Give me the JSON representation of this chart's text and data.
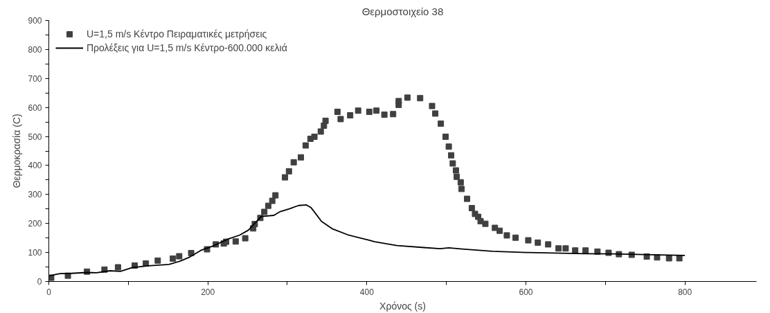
{
  "chart_data": {
    "type": "scatter",
    "title": "Θερμοστοιχείο 38",
    "xlabel": "Χρόνος (s)",
    "ylabel": "Θερμοκρασία (C)",
    "xlim": [
      0,
      890
    ],
    "ylim": [
      0,
      900
    ],
    "xticks": [
      0,
      {
        "value": 100,
        "label": null
      },
      200,
      {
        "value": 300,
        "label": null
      },
      400,
      {
        "value": 500,
        "label": null
      },
      600,
      {
        "value": 700,
        "label": null
      },
      800
    ],
    "yticks": [
      0,
      {
        "value": 50,
        "label": null
      },
      100,
      {
        "value": 150,
        "label": null
      },
      200,
      {
        "value": 250,
        "label": null
      },
      300,
      {
        "value": 350,
        "label": null
      },
      400,
      {
        "value": 450,
        "label": null
      },
      500,
      {
        "value": 550,
        "label": null
      },
      600,
      {
        "value": 650,
        "label": null
      },
      700,
      {
        "value": 750,
        "label": null
      },
      800,
      {
        "value": 850,
        "label": null
      },
      900
    ],
    "grid": false,
    "legend": "top left",
    "series": [
      {
        "name": "U=1,5 m/s Κέντρο Πειραματικές μετρήσεις",
        "marker": "square",
        "color": "#404040",
        "x": [
          3,
          24,
          48,
          70,
          87,
          108,
          122,
          137,
          156,
          164,
          179,
          199,
          210,
          220,
          223,
          235,
          247,
          257,
          259,
          266,
          271,
          276,
          281,
          285,
          297,
          302,
          308,
          317,
          323,
          329,
          334,
          342,
          346,
          348,
          363,
          367,
          379,
          389,
          403,
          412,
          422,
          433,
          440,
          440,
          451,
          467,
          482,
          486,
          493,
          499,
          503,
          506,
          508,
          512,
          513,
          518,
          519,
          526,
          532,
          536,
          540,
          543,
          549,
          561,
          567,
          576,
          587,
          603,
          615,
          628,
          641,
          650,
          662,
          675,
          690,
          704,
          717,
          733,
          752,
          765,
          780,
          793
        ],
        "values": [
          13,
          20,
          34,
          41,
          49,
          55,
          62,
          72,
          79,
          87,
          98,
          111,
          128,
          131,
          137,
          138,
          149,
          183,
          198,
          219,
          240,
          261,
          278,
          297,
          359,
          380,
          411,
          428,
          469,
          492,
          499,
          517,
          537,
          554,
          585,
          560,
          573,
          589,
          585,
          589,
          575,
          577,
          609,
          622,
          634,
          632,
          605,
          579,
          544,
          499,
          465,
          435,
          407,
          383,
          361,
          342,
          319,
          285,
          253,
          233,
          223,
          208,
          199,
          185,
          175,
          159,
          151,
          142,
          134,
          128,
          114,
          114,
          107,
          107,
          103,
          99,
          94,
          92,
          86,
          83,
          80,
          80
        ]
      },
      {
        "name": "Προλέξεις για U=1,5 m/s Κέντρο-600.000 κελιά",
        "type": "line",
        "line_style": "solid",
        "color": "#000000",
        "x": [
          1,
          14,
          28,
          48,
          60,
          77,
          90,
          105,
          125,
          151,
          165,
          177,
          191,
          208,
          225,
          240,
          251,
          260,
          267,
          283,
          291,
          303,
          314,
          324,
          330,
          343,
          357,
          377,
          402,
          410,
          438,
          472,
          492,
          503,
          520,
          558,
          600,
          624,
          674,
          709,
          800
        ],
        "values": [
          20,
          27,
          28,
          31,
          30,
          37,
          35,
          48,
          54,
          59,
          70,
          84,
          107,
          124,
          146,
          160,
          177,
          203,
          224,
          228,
          241,
          251,
          262,
          264,
          254,
          207,
          181,
          160,
          143,
          137,
          124,
          117,
          113,
          116,
          112,
          104,
          100,
          99,
          96,
          95,
          90
        ]
      }
    ]
  }
}
